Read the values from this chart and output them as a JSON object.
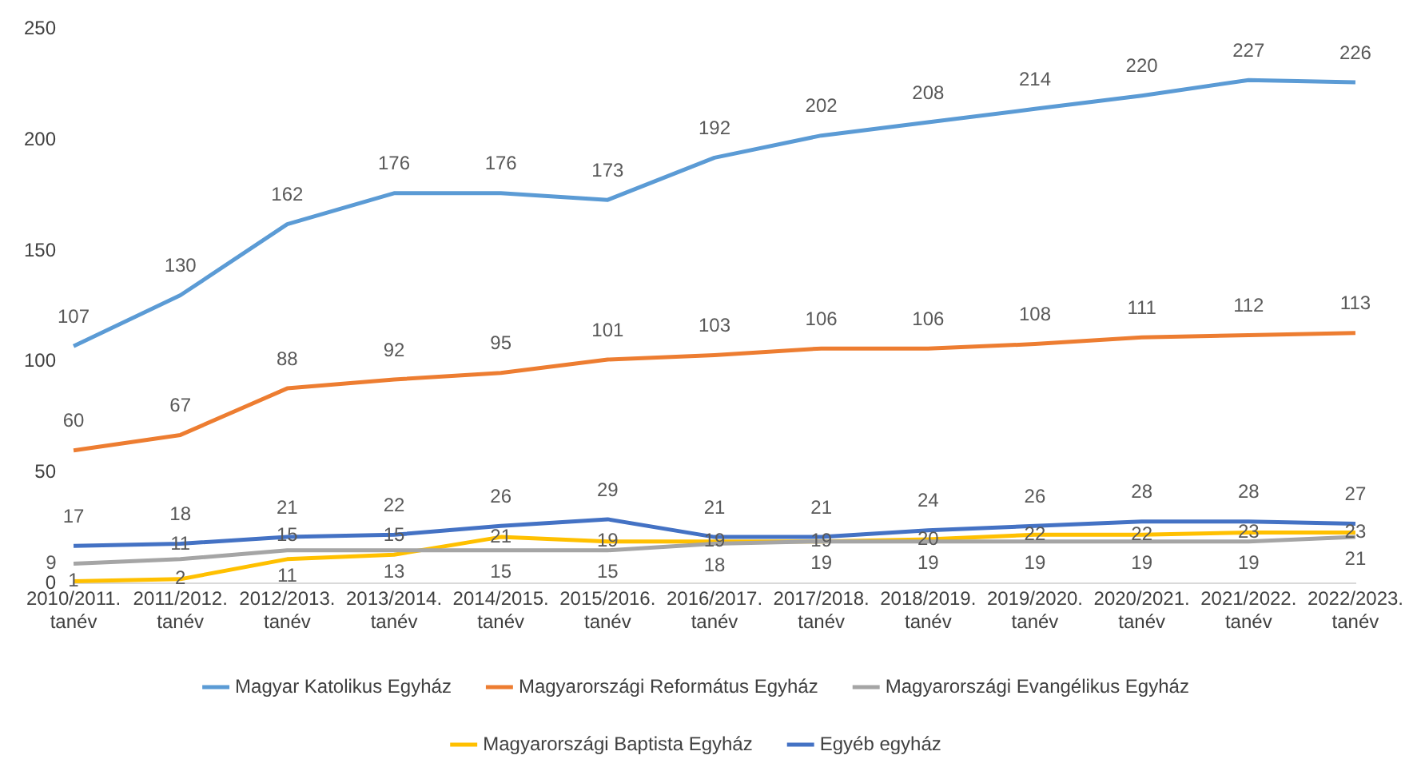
{
  "chart_data": {
    "type": "line",
    "categories": [
      "2010/2011. tanév",
      "2011/2012. tanév",
      "2012/2013. tanév",
      "2013/2014. tanév",
      "2014/2015. tanév",
      "2015/2016. tanév",
      "2016/2017. tanév",
      "2017/2018. tanév",
      "2018/2019. tanév",
      "2019/2020. tanév",
      "2020/2021. tanév",
      "2021/2022. tanév",
      "2022/2023. tanév"
    ],
    "series": [
      {
        "name": "Magyar Katolikus Egyház",
        "color": "#5b9bd5",
        "values": [
          107,
          130,
          162,
          176,
          176,
          173,
          192,
          202,
          208,
          214,
          220,
          227,
          226
        ]
      },
      {
        "name": "Magyarországi Református Egyház",
        "color": "#ed7d31",
        "values": [
          60,
          67,
          88,
          92,
          95,
          101,
          103,
          106,
          106,
          108,
          111,
          112,
          113
        ]
      },
      {
        "name": "Magyarországi Evangélikus Egyház",
        "color": "#a5a5a5",
        "values": [
          9,
          11,
          15,
          15,
          15,
          15,
          18,
          19,
          19,
          19,
          19,
          19,
          21
        ]
      },
      {
        "name": "Magyarországi Baptista Egyház",
        "color": "#ffc000",
        "values": [
          1,
          2,
          11,
          13,
          21,
          19,
          19,
          19,
          20,
          22,
          22,
          23,
          23
        ]
      },
      {
        "name": "Egyéb egyház",
        "color": "#4472c4",
        "values": [
          17,
          18,
          21,
          22,
          26,
          29,
          21,
          21,
          24,
          26,
          28,
          28,
          27
        ]
      }
    ],
    "ylim": [
      0,
      250
    ],
    "yticks": [
      0,
      50,
      100,
      150,
      200,
      250
    ],
    "grid": false,
    "legend": "bottom",
    "marker": "none",
    "line_style": "solid",
    "data_labels": true
  }
}
